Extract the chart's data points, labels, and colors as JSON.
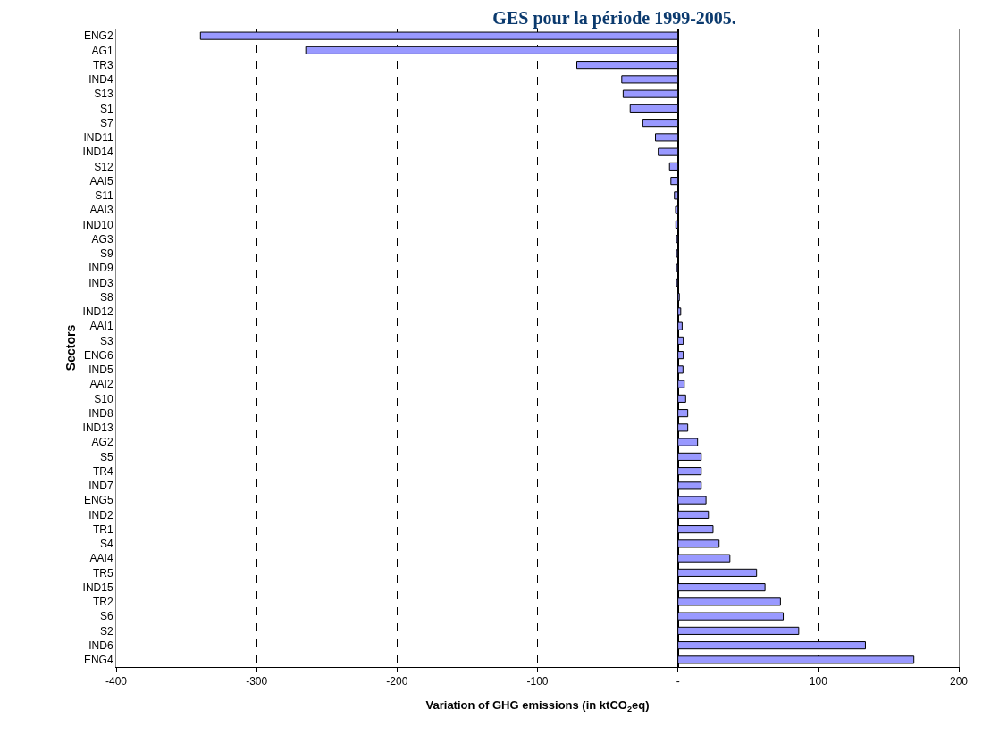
{
  "chart_data": {
    "type": "bar",
    "orientation": "horizontal",
    "title": "GES pour la période 1999-2005.",
    "ylabel": "Sectors",
    "xlabel": "Variation of GHG emissions (in ktCO$_{2}$eq)",
    "categories": [
      "ENG2",
      "AG1",
      "TR3",
      "IND4",
      "S13",
      "S1",
      "S7",
      "IND11",
      "IND14",
      "S12",
      "AAI5",
      "S11",
      "AAI3",
      "IND10",
      "AG3",
      "S9",
      "IND9",
      "IND3",
      "S8",
      "IND12",
      "AAI1",
      "S3",
      "ENG6",
      "IND5",
      "AAI2",
      "S10",
      "IND8",
      "IND13",
      "AG2",
      "S5",
      "TR4",
      "IND7",
      "ENG5",
      "IND2",
      "TR1",
      "S4",
      "AAI4",
      "TR5",
      "IND15",
      "TR2",
      "S6",
      "S2",
      "IND6",
      "ENG4"
    ],
    "values": [
      -340,
      -265,
      -72,
      -40,
      -39,
      -34,
      -25,
      -16,
      -14,
      -6,
      -5,
      -2.5,
      -1.7,
      -1.5,
      -1,
      -1,
      -1,
      -1,
      1,
      2,
      3,
      3.8,
      3.8,
      3.6,
      4.5,
      5.5,
      7,
      7,
      14,
      16.6,
      16.6,
      16.6,
      20,
      21.7,
      25,
      29.3,
      37,
      56,
      62,
      73,
      75,
      86,
      133.5,
      168
    ],
    "color": "#9999ff",
    "xlim": [
      -400,
      200
    ],
    "xticks": [
      -400,
      -300,
      -200,
      -100,
      {
        "value": 0,
        "label": "-"
      },
      100,
      200
    ],
    "grid": "x"
  }
}
